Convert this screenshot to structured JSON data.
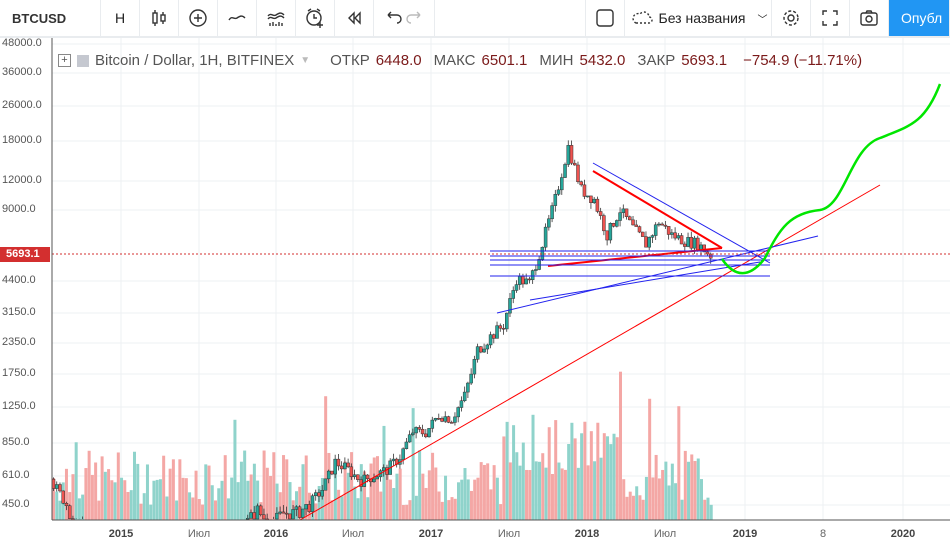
{
  "toolbar": {
    "symbol": "BTCUSD",
    "interval": "H",
    "layout_name": "Без названия",
    "publish": "Опубл"
  },
  "legend": {
    "title": "Bitcoin / Dollar, 1H, BITFINEX",
    "open_label": "ОТКР",
    "open": "6448.0",
    "high_label": "МАКС",
    "high": "6501.1",
    "low_label": "МИН",
    "low": "5432.0",
    "close_label": "ЗАКР",
    "close": "5693.1",
    "change": "−754.9 (−11.71%)"
  },
  "chart_data": {
    "type": "candlestick",
    "y_ticks": [
      "48000.0",
      "36000.0",
      "26000.0",
      "18000.0",
      "12000.0",
      "9000.0",
      "4400.0",
      "3150.0",
      "2350.0",
      "1750.0",
      "1250.0",
      "850.0",
      "610.0",
      "450.0"
    ],
    "last_price": "5693.1",
    "x_ticks": [
      {
        "label": "2015",
        "major": true
      },
      {
        "label": "Июл",
        "major": false
      },
      {
        "label": "2016",
        "major": true
      },
      {
        "label": "Июл",
        "major": false
      },
      {
        "label": "2017",
        "major": true
      },
      {
        "label": "Июл",
        "major": false
      },
      {
        "label": "2018",
        "major": true
      },
      {
        "label": "Июл",
        "major": false
      },
      {
        "label": "2019",
        "major": true
      },
      {
        "label": "8",
        "major": false
      },
      {
        "label": "2020",
        "major": true
      }
    ],
    "monthly_close": [
      590,
      480,
      380,
      370,
      320,
      230,
      250,
      260,
      240,
      250,
      250,
      280,
      260,
      240,
      300,
      380,
      430,
      380,
      420,
      420,
      450,
      530,
      700,
      650,
      580,
      610,
      650,
      740,
      960,
      950,
      1150,
      1100,
      1400,
      2200,
      2500,
      2800,
      4500,
      4300,
      6400,
      10000,
      17000,
      11000,
      10000,
      7000,
      9000,
      7500,
      6400,
      8000,
      7000,
      6600,
      6400,
      5693
    ],
    "colors": {
      "up": "#26a69a",
      "down": "#ef5350",
      "projection": "#00e600",
      "trend": "#2222ee",
      "support": "#ff0000"
    }
  }
}
